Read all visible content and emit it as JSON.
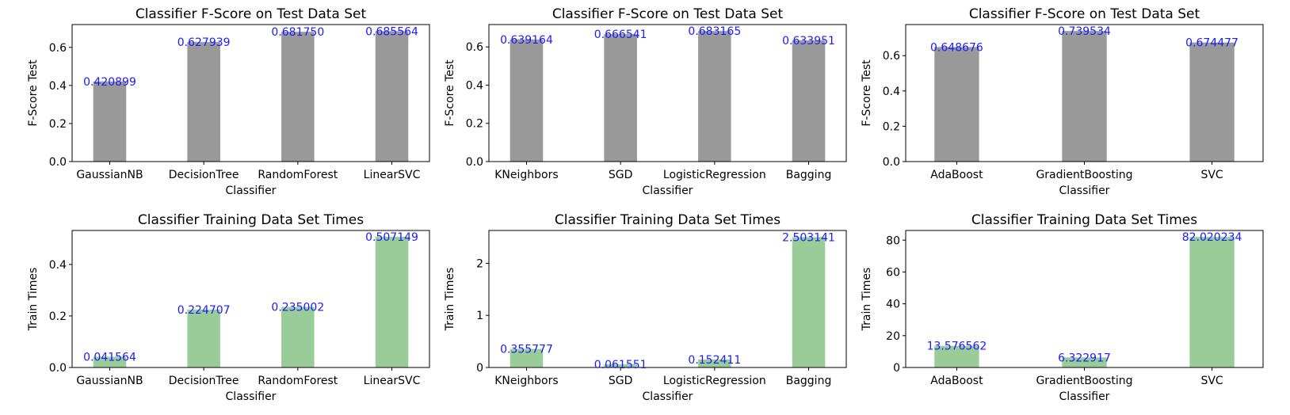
{
  "figure": {
    "rows": 2,
    "cols": 3
  },
  "colors": {
    "fscore_bar": "#999999",
    "time_bar": "#99cc99",
    "value_label": "#1a1aff"
  },
  "chart_data": [
    {
      "type": "bar",
      "title": "Classifier F-Score on Test Data Set",
      "xlabel": "Classifier",
      "ylabel": "F-Score Test",
      "categories": [
        "GaussianNB",
        "DecisionTree",
        "RandomForest",
        "LinearSVC"
      ],
      "values": [
        0.420899,
        0.627939,
        0.68175,
        0.685564
      ],
      "value_labels": [
        "0.420899",
        "0.627939",
        "0.681750",
        "0.685564"
      ],
      "ylim": [
        0,
        0.72
      ],
      "yticks": [
        0.0,
        0.2,
        0.4,
        0.6
      ],
      "ytick_labels": [
        "0.0",
        "0.2",
        "0.4",
        "0.6"
      ],
      "color": "#999999",
      "grid": false
    },
    {
      "type": "bar",
      "title": "Classifier F-Score on Test Data Set",
      "xlabel": "Classifier",
      "ylabel": "F-Score Test",
      "categories": [
        "KNeighbors",
        "SGD",
        "LogisticRegression",
        "Bagging"
      ],
      "values": [
        0.639164,
        0.666541,
        0.683165,
        0.633951
      ],
      "value_labels": [
        "0.639164",
        "0.666541",
        "0.683165",
        "0.633951"
      ],
      "ylim": [
        0,
        0.717
      ],
      "yticks": [
        0.0,
        0.2,
        0.4,
        0.6
      ],
      "ytick_labels": [
        "0.0",
        "0.2",
        "0.4",
        "0.6"
      ],
      "color": "#999999",
      "grid": false
    },
    {
      "type": "bar",
      "title": "Classifier F-Score on Test Data Set",
      "xlabel": "Classifier",
      "ylabel": "F-Score Test",
      "categories": [
        "AdaBoost",
        "GradientBoosting",
        "SVC"
      ],
      "values": [
        0.648676,
        0.739534,
        0.674477
      ],
      "value_labels": [
        "0.648676",
        "0.739534",
        "0.674477"
      ],
      "ylim": [
        0,
        0.776
      ],
      "yticks": [
        0.0,
        0.2,
        0.4,
        0.6
      ],
      "ytick_labels": [
        "0.0",
        "0.2",
        "0.4",
        "0.6"
      ],
      "color": "#999999",
      "grid": false
    },
    {
      "type": "bar",
      "title": "Classifier Training Data Set Times",
      "xlabel": "Classifier",
      "ylabel": "Train Times",
      "categories": [
        "GaussianNB",
        "DecisionTree",
        "RandomForest",
        "LinearSVC"
      ],
      "values": [
        0.041564,
        0.224707,
        0.235002,
        0.507149
      ],
      "value_labels": [
        "0.041564",
        "0.224707",
        "0.235002",
        "0.507149"
      ],
      "ylim": [
        0,
        0.532
      ],
      "yticks": [
        0.0,
        0.2,
        0.4
      ],
      "ytick_labels": [
        "0.0",
        "0.2",
        "0.4"
      ],
      "color": "#99cc99",
      "grid": false
    },
    {
      "type": "bar",
      "title": "Classifier Training Data Set Times",
      "xlabel": "Classifier",
      "ylabel": "Train Times",
      "categories": [
        "KNeighbors",
        "SGD",
        "LogisticRegression",
        "Bagging"
      ],
      "values": [
        0.355777,
        0.061551,
        0.152411,
        2.503141
      ],
      "value_labels": [
        "0.355777",
        "0.061551",
        "0.152411",
        "2.503141"
      ],
      "ylim": [
        0,
        2.63
      ],
      "yticks": [
        0,
        1,
        2
      ],
      "ytick_labels": [
        "0",
        "1",
        "2"
      ],
      "color": "#99cc99",
      "grid": false
    },
    {
      "type": "bar",
      "title": "Classifier Training Data Set Times",
      "xlabel": "Classifier",
      "ylabel": "Train Times",
      "categories": [
        "AdaBoost",
        "GradientBoosting",
        "SVC"
      ],
      "values": [
        13.576562,
        6.322917,
        82.020234
      ],
      "value_labels": [
        "13.576562",
        "6.322917",
        "82.020234"
      ],
      "ylim": [
        0,
        86.1
      ],
      "yticks": [
        0,
        20,
        40,
        60,
        80
      ],
      "ytick_labels": [
        "0",
        "20",
        "40",
        "60",
        "80"
      ],
      "color": "#99cc99",
      "grid": false
    }
  ]
}
